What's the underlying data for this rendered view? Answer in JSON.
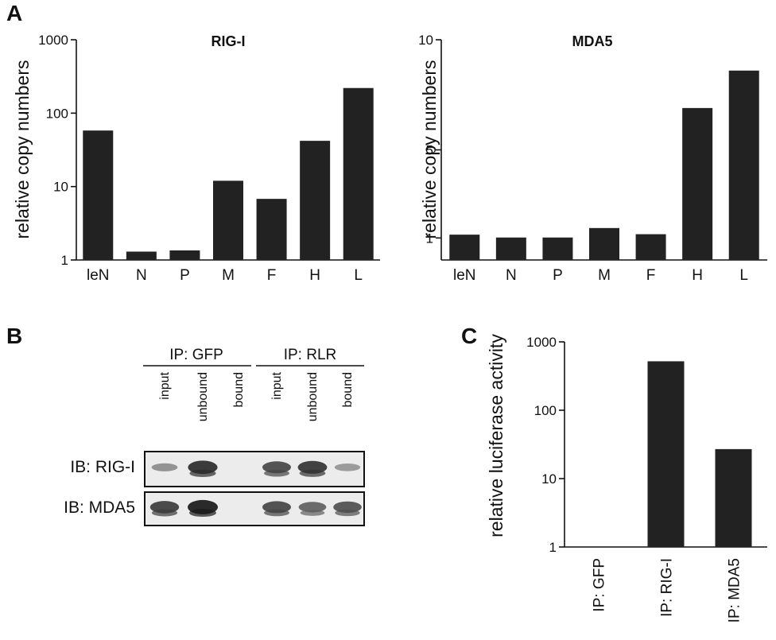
{
  "panels": {
    "A": "A",
    "B": "B",
    "C": "C"
  },
  "chart_data": [
    {
      "type": "bar",
      "title": "RIG-I",
      "ylabel": "relative copy numbers",
      "xlabel": "",
      "categories": [
        "leN",
        "N",
        "P",
        "M",
        "F",
        "H",
        "L"
      ],
      "values": [
        58,
        1.3,
        1.35,
        12,
        6.8,
        42,
        220
      ],
      "yscale": "log",
      "ylim": [
        1,
        1000
      ],
      "yticks": [
        "1",
        "10",
        "100",
        "1000"
      ],
      "bar_color": "#222222"
    },
    {
      "type": "bar",
      "title": "MDA5",
      "ylabel": "relative copy numbers",
      "xlabel": "",
      "categories": [
        "leN",
        "N",
        "P",
        "M",
        "F",
        "H",
        "L"
      ],
      "values": [
        1.15,
        1.02,
        1.02,
        1.45,
        1.17,
        6.9,
        8.6
      ],
      "yscale": "linear",
      "ylim": [
        0,
        10
      ],
      "yticks": [
        "1",
        "5",
        "10"
      ],
      "bar_color": "#222222"
    },
    {
      "type": "bar",
      "title": "",
      "ylabel": "relative luciferase activity",
      "xlabel": "",
      "categories": [
        "IP: GFP",
        "IP: RIG-I",
        "IP: MDA5"
      ],
      "values": [
        1,
        520,
        27
      ],
      "yscale": "log",
      "ylim": [
        1,
        1000
      ],
      "yticks": [
        "1",
        "10",
        "100",
        "1000"
      ],
      "bar_color": "#222222"
    }
  ],
  "blot": {
    "group_headers": [
      "IP: GFP",
      "IP: RLR"
    ],
    "lanes": [
      "input",
      "unbound",
      "bound",
      "input",
      "unbound",
      "bound"
    ],
    "rows": [
      {
        "label": "IB: RIG-I",
        "intensities": [
          0.35,
          0.9,
          0.0,
          0.75,
          0.85,
          0.3
        ]
      },
      {
        "label": "IB: MDA5",
        "intensities": [
          0.8,
          1.0,
          0.0,
          0.75,
          0.6,
          0.7
        ]
      }
    ]
  }
}
